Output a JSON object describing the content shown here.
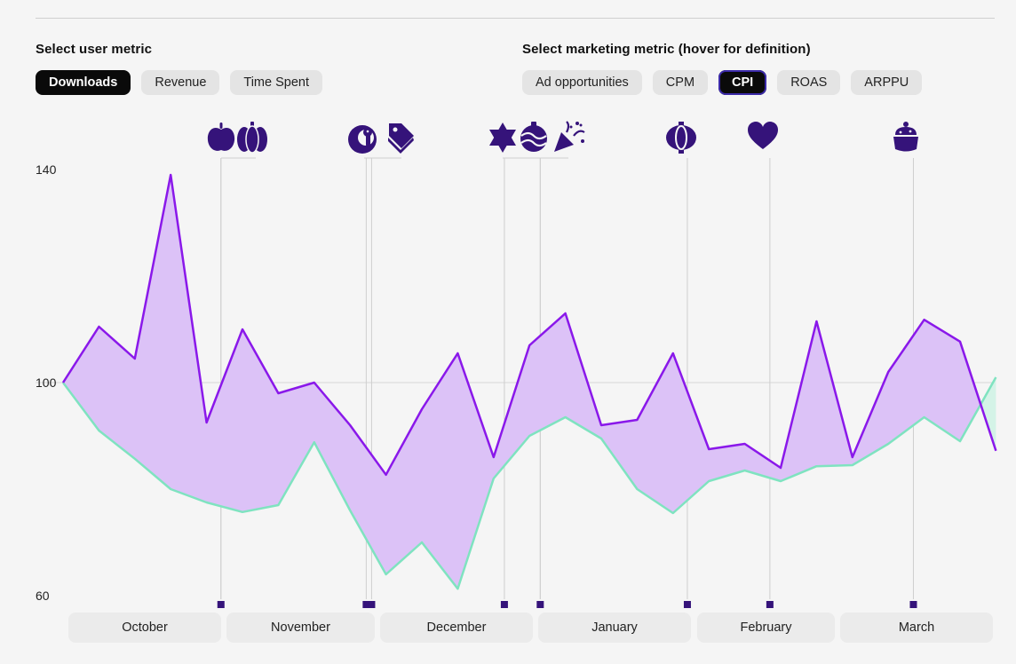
{
  "user_metric": {
    "label": "Select user metric",
    "options": [
      "Downloads",
      "Revenue",
      "Time Spent"
    ],
    "selected": "Downloads"
  },
  "marketing_metric": {
    "label": "Select marketing metric (hover for definition)",
    "options": [
      "Ad opportunities",
      "CPM",
      "CPI",
      "ROAS",
      "ARPPU"
    ],
    "selected": "CPI"
  },
  "months": [
    "October",
    "November",
    "December",
    "January",
    "February",
    "March"
  ],
  "colors": {
    "purple_line": "#8a18ea",
    "green_line": "#7fe3c0",
    "fill": "#dcc2f7",
    "green_fill": "#d4f3e7",
    "event": "#35137a"
  },
  "events": [
    {
      "name": "apple-icon",
      "x": 4.4
    },
    {
      "name": "pumpkin-icon",
      "x": 4.4
    },
    {
      "name": "turkey-icon",
      "x": 8.45
    },
    {
      "name": "price-tag-icon",
      "x": 8.6
    },
    {
      "name": "star-of-david-icon",
      "x": 12.3
    },
    {
      "name": "ornament-icon",
      "x": 13.3
    },
    {
      "name": "party-popper-icon",
      "x": 13.3
    },
    {
      "name": "lantern-icon",
      "x": 17.4
    },
    {
      "name": "heart-icon",
      "x": 19.7
    },
    {
      "name": "pudding-icon",
      "x": 23.7
    }
  ],
  "chart_data": {
    "type": "area",
    "title": "",
    "xlabel": "",
    "ylabel": "",
    "ylim": [
      60,
      140
    ],
    "yticks": [
      140,
      100,
      60
    ],
    "x": [
      0,
      1,
      2,
      3,
      4,
      5,
      6,
      7,
      8,
      9,
      10,
      11,
      12,
      13,
      14,
      15,
      16,
      17,
      18,
      19,
      20,
      21,
      22,
      23,
      24,
      25,
      26
    ],
    "series": [
      {
        "name": "Downloads",
        "values": [
          100,
          91,
          85.7,
          80,
          77.5,
          75.7,
          77,
          88.8,
          76,
          64,
          70,
          61.3,
          82,
          90,
          93.5,
          89.5,
          80,
          75.5,
          81.5,
          83.5,
          81.5,
          84.3,
          84.5,
          88.5,
          93.5,
          89,
          101
        ]
      },
      {
        "name": "CPI",
        "values": [
          100,
          110.5,
          104.5,
          139,
          92.5,
          110,
          98,
          100,
          92,
          82.7,
          95,
          105.5,
          86,
          107,
          113,
          92,
          93,
          105.5,
          87.5,
          88.5,
          84,
          111.5,
          86,
          102,
          111.8,
          107.7,
          87.2
        ]
      }
    ]
  }
}
